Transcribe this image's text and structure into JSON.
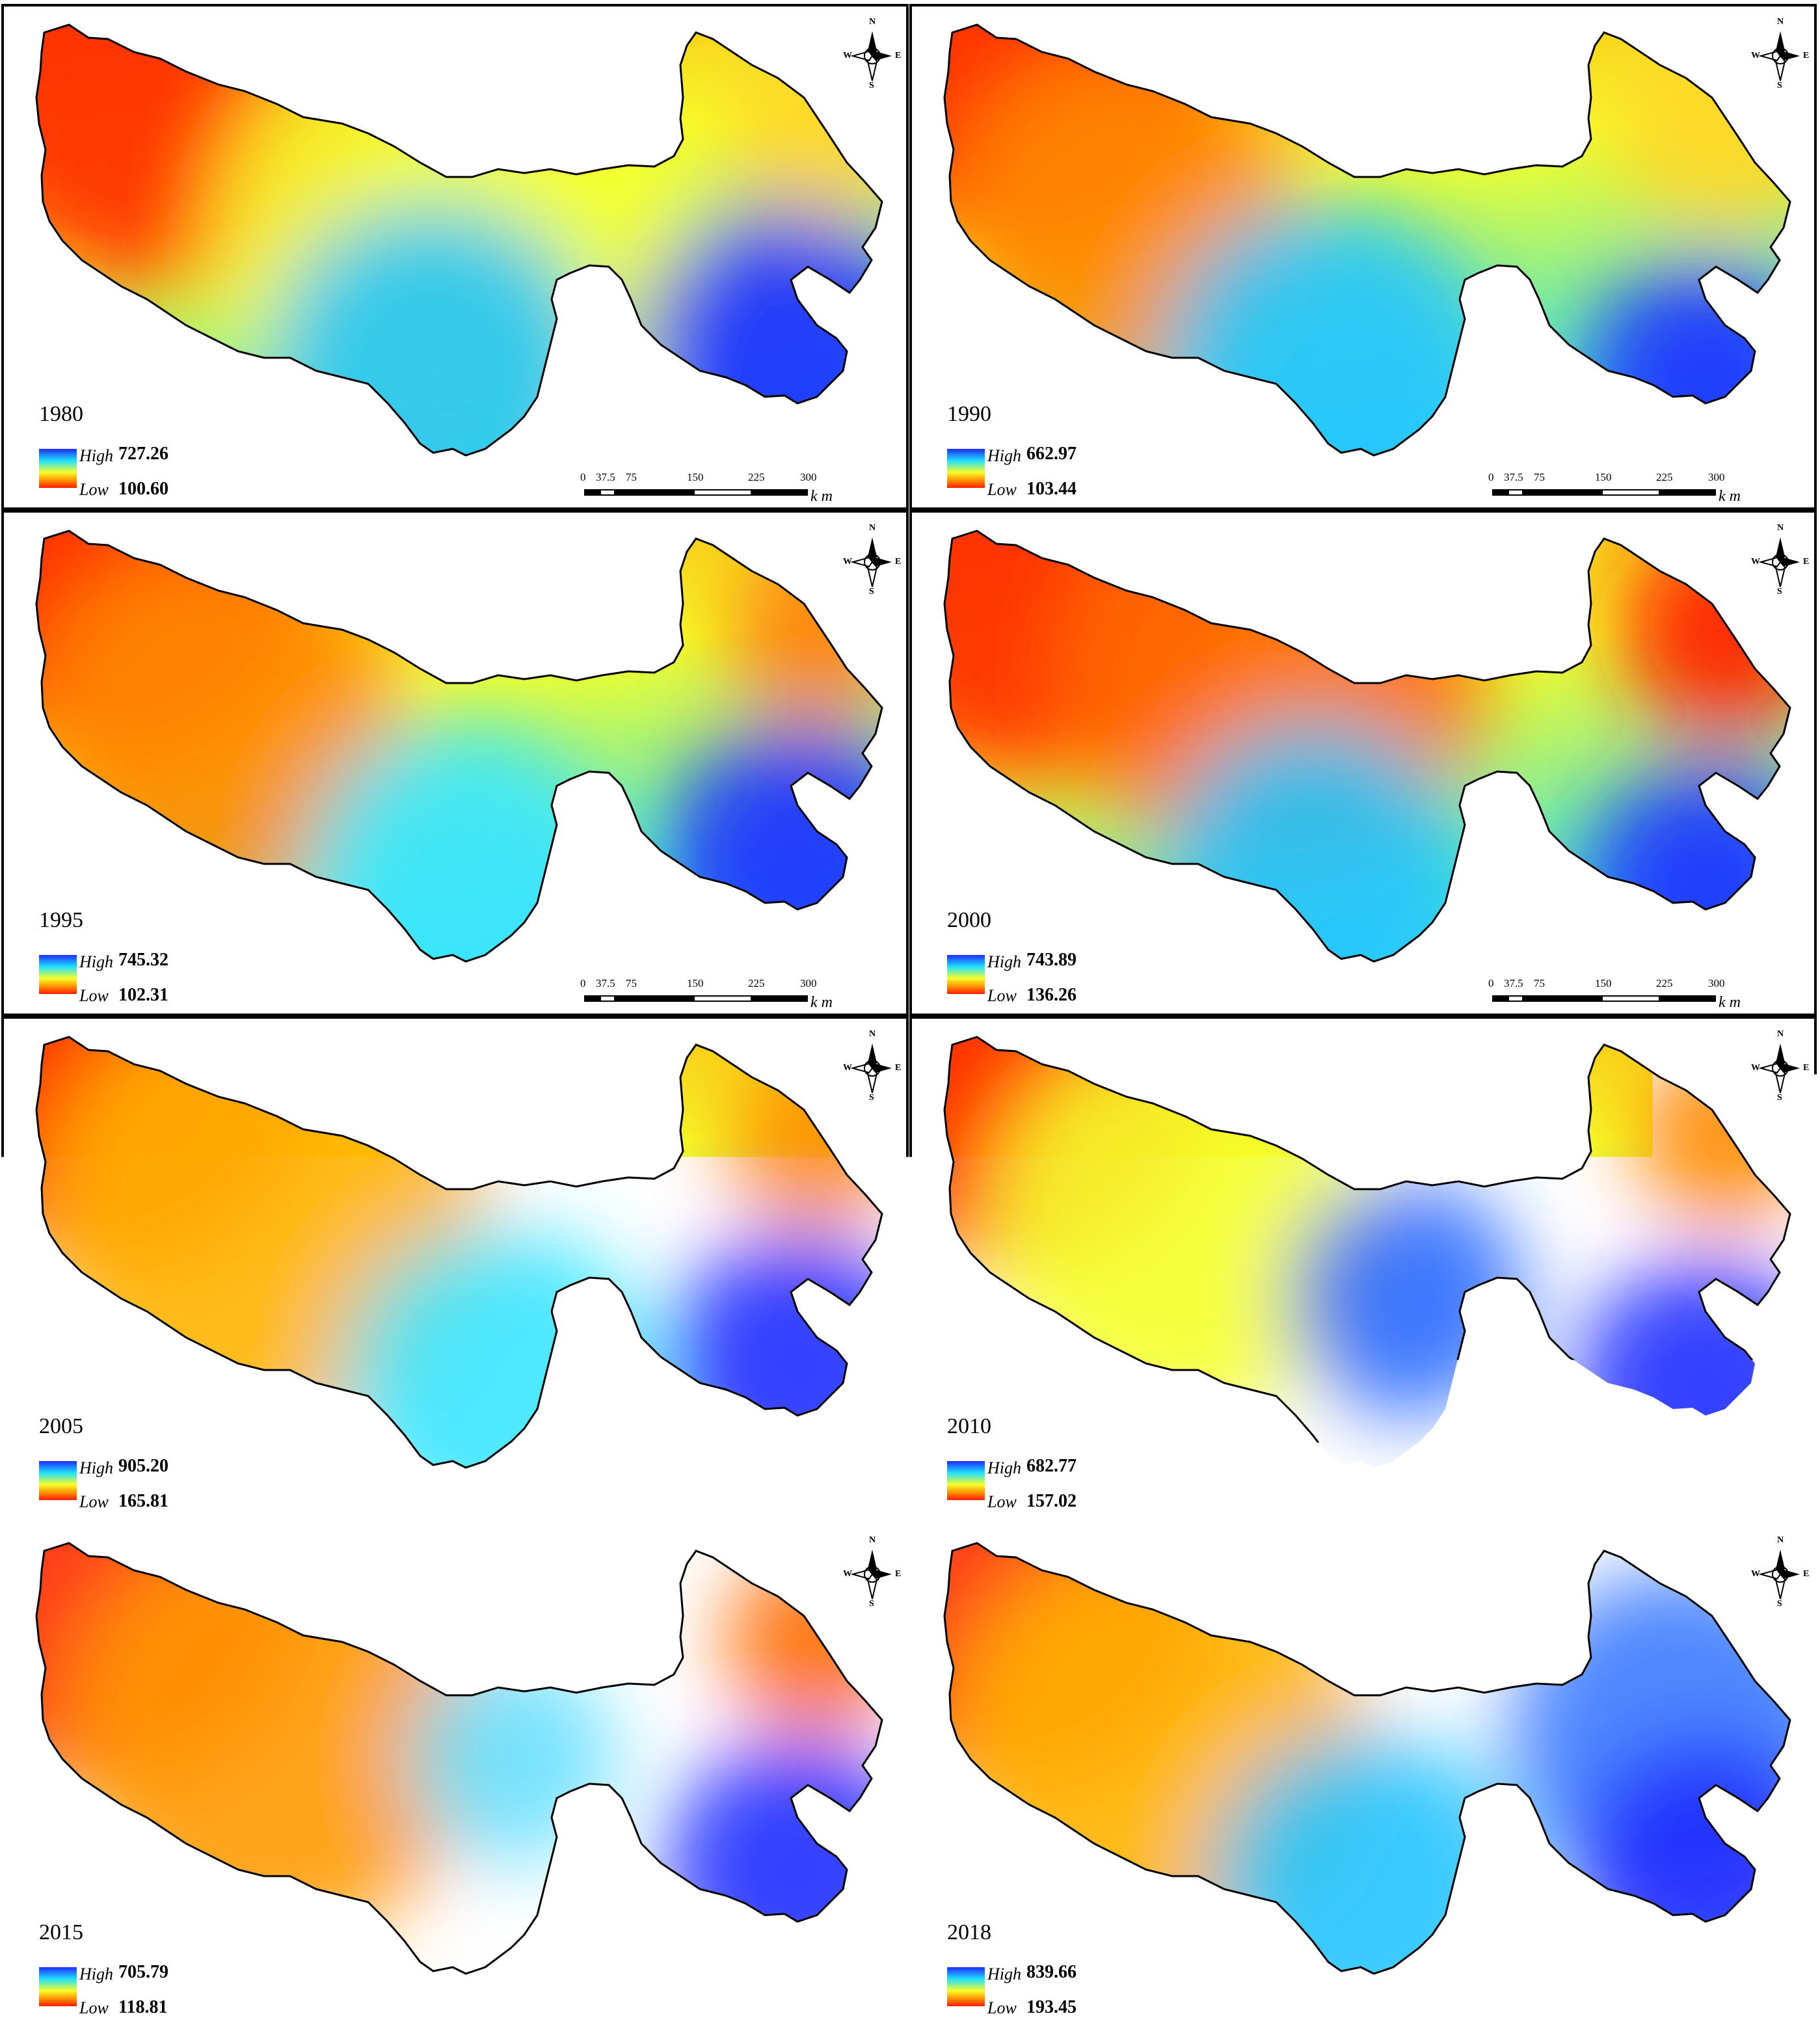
{
  "panels": [
    {
      "year": "1980",
      "high_label": "High",
      "high_value": "727.26",
      "low_label": "Low",
      "low_value": "100.60"
    },
    {
      "year": "1990",
      "high_label": "High",
      "high_value": "662.97",
      "low_label": "Low",
      "low_value": "103.44"
    },
    {
      "year": "1995",
      "high_label": "High",
      "high_value": "745.32",
      "low_label": "Low",
      "low_value": "102.31"
    },
    {
      "year": "2000",
      "high_label": "High",
      "high_value": "743.89",
      "low_label": "Low",
      "low_value": "136.26"
    },
    {
      "year": "2005",
      "high_label": "High",
      "high_value": "905.20",
      "low_label": "Low",
      "low_value": "165.81"
    },
    {
      "year": "2010",
      "high_label": "High",
      "high_value": "682.77",
      "low_label": "Low",
      "low_value": "157.02"
    },
    {
      "year": "2015",
      "high_label": "High",
      "high_value": "705.79",
      "low_label": "Low",
      "low_value": "118.81"
    },
    {
      "year": "2018",
      "high_label": "High",
      "high_value": "839.66",
      "low_label": "Low",
      "low_value": "193.45"
    }
  ],
  "scale_bar": {
    "ticks": [
      "0",
      "37.5",
      "75",
      "150",
      "225",
      "300"
    ],
    "unit": "km"
  },
  "compass": {
    "n": "N",
    "s": "S",
    "e": "E",
    "w": "W"
  },
  "colors": {
    "high": "#1e2cff",
    "mid_high": "#1ee0ff",
    "mid": "#f5ff2a",
    "mid_low": "#ff8a00",
    "low": "#ff1a00"
  }
}
